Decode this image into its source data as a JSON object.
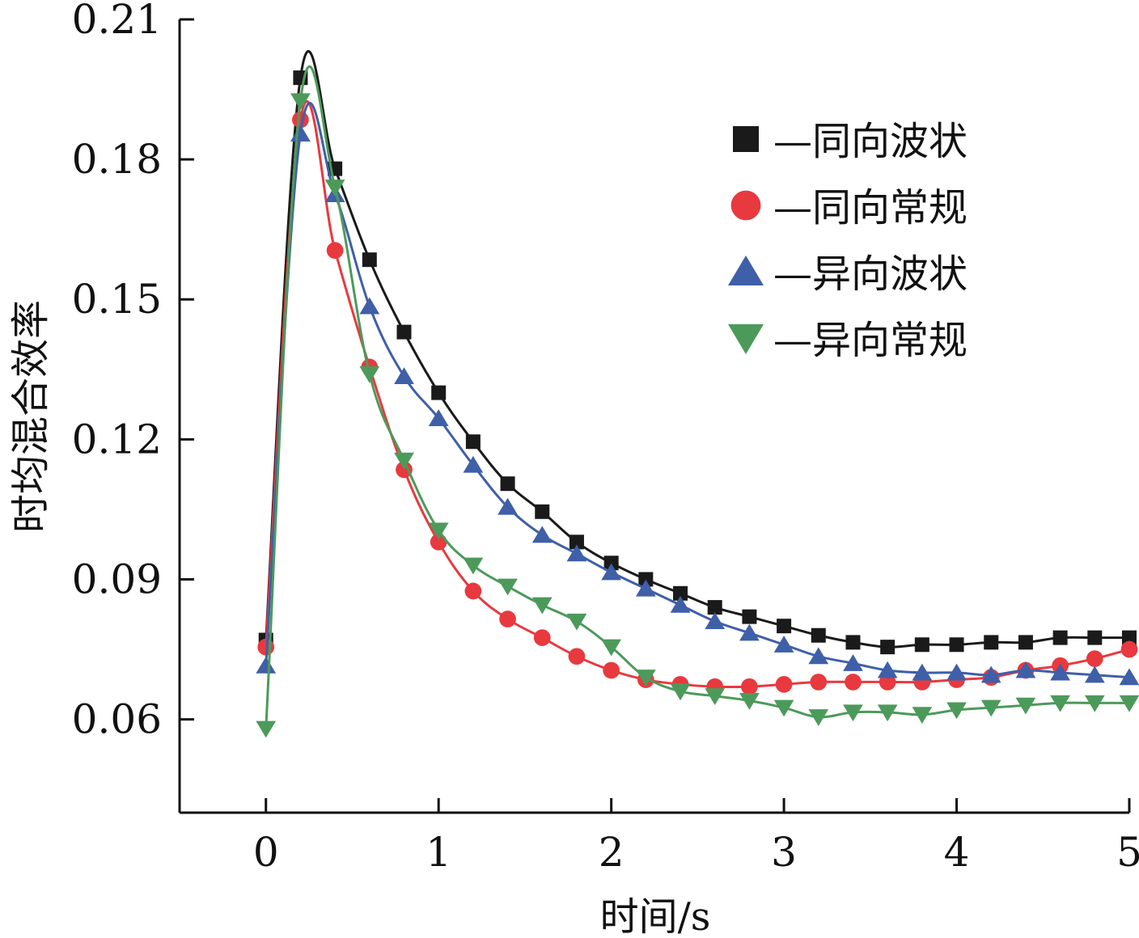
{
  "chart_data": {
    "type": "line",
    "title": "",
    "xlabel": "时间/s",
    "ylabel": "时均混合效率",
    "xlim": [
      -0.5,
      5
    ],
    "ylim": [
      0.04,
      0.21
    ],
    "xticks": [
      0,
      1,
      2,
      3,
      4,
      5
    ],
    "xtick_labels": [
      "0",
      "1",
      "2",
      "3",
      "4",
      "5"
    ],
    "yticks": [
      0.06,
      0.09,
      0.12,
      0.15,
      0.18,
      0.21
    ],
    "ytick_labels": [
      "0.06",
      "0.09",
      "0.12",
      "0.15",
      "0.18",
      "0.21"
    ],
    "grid": false,
    "legend_position": "top-right",
    "x": [
      0,
      0.2,
      0.4,
      0.6,
      0.8,
      1.0,
      1.2,
      1.4,
      1.6,
      1.8,
      2.0,
      2.2,
      2.4,
      2.6,
      2.8,
      3.0,
      3.2,
      3.4,
      3.6,
      3.8,
      4.0,
      4.2,
      4.4,
      4.6,
      4.8,
      5.0
    ],
    "series": [
      {
        "name": "—同向波状",
        "marker": "square",
        "color": "#1a1a1a",
        "values": [
          0.077,
          0.1975,
          0.178,
          0.1585,
          0.143,
          0.13,
          0.1195,
          0.1105,
          0.1045,
          0.098,
          0.0935,
          0.09,
          0.087,
          0.084,
          0.082,
          0.08,
          0.078,
          0.0765,
          0.0755,
          0.076,
          0.076,
          0.0765,
          0.0765,
          0.0775,
          0.0775,
          0.0775
        ]
      },
      {
        "name": "—同向常规",
        "marker": "circle",
        "color": "#e8393f",
        "values": [
          0.0755,
          0.1885,
          0.1605,
          0.1355,
          0.1135,
          0.098,
          0.0875,
          0.0815,
          0.0775,
          0.0735,
          0.0705,
          0.0685,
          0.0675,
          0.067,
          0.067,
          0.0675,
          0.068,
          0.068,
          0.068,
          0.068,
          0.0685,
          0.069,
          0.0705,
          0.0715,
          0.073,
          0.075
        ]
      },
      {
        "name": "—异向波状",
        "marker": "triangle-up",
        "color": "#3f5fa8",
        "values": [
          0.0715,
          0.1855,
          0.1725,
          0.1485,
          0.1335,
          0.1245,
          0.1145,
          0.1055,
          0.0995,
          0.0955,
          0.0915,
          0.088,
          0.0845,
          0.081,
          0.0785,
          0.076,
          0.0735,
          0.072,
          0.0705,
          0.07,
          0.07,
          0.0695,
          0.0705,
          0.07,
          0.0695,
          0.069
        ]
      },
      {
        "name": "—异向常规",
        "marker": "triangle-down",
        "color": "#4c9a5a",
        "values": [
          0.058,
          0.1925,
          0.174,
          0.134,
          0.1155,
          0.1005,
          0.093,
          0.0885,
          0.0845,
          0.081,
          0.0755,
          0.069,
          0.066,
          0.065,
          0.064,
          0.0625,
          0.0605,
          0.0615,
          0.0615,
          0.061,
          0.062,
          0.0625,
          0.063,
          0.0635,
          0.0635,
          0.0635
        ]
      }
    ]
  }
}
